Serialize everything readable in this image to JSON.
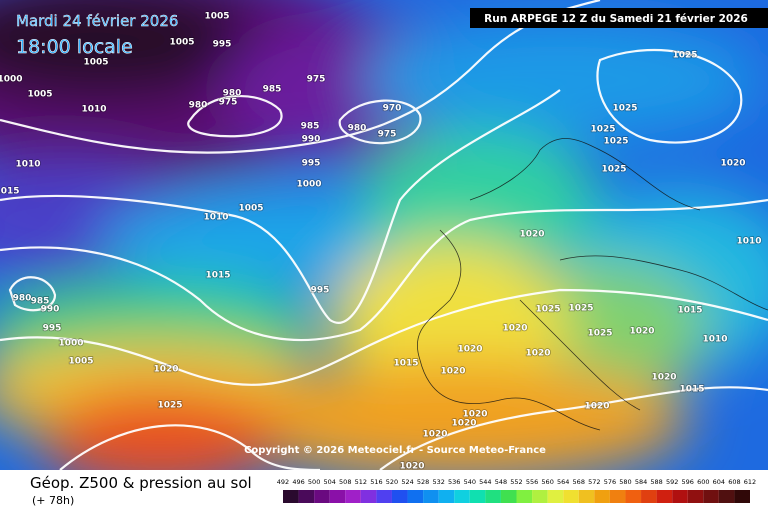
{
  "header": {
    "date": "Mardi 24 février 2026",
    "time": "18:00 locale",
    "run": "Run ARPEGE 12 Z du Samedi 21 février 2026"
  },
  "map": {
    "copyright": "Copyright © 2026 Meteociel.fr - Source Meteo-France",
    "isobar_labels": [
      "1005",
      "1005",
      "995",
      "1005",
      "1000",
      "1005",
      "1010",
      "975",
      "985",
      "980",
      "975",
      "980",
      "970",
      "975",
      "980",
      "985",
      "990",
      "995",
      "1000",
      "1010",
      "1015",
      "1005",
      "1010",
      "1015",
      "995",
      "980",
      "985",
      "990",
      "995",
      "1000",
      "1005",
      "1020",
      "1025",
      "1025",
      "1025",
      "1025",
      "1025",
      "1025",
      "1020",
      "1010",
      "1020",
      "1025",
      "1025",
      "1025",
      "1020",
      "1020",
      "1015",
      "1010",
      "1020",
      "1020",
      "1015",
      "1020",
      "1020",
      "1015",
      "1020",
      "1020",
      "1020",
      "1020",
      "1020"
    ]
  },
  "legend": {
    "title": "Géop. Z500 & pression au sol",
    "lead": "(+ 78h)",
    "scale": [
      "492",
      "496",
      "500",
      "504",
      "508",
      "512",
      "516",
      "520",
      "524",
      "528",
      "532",
      "536",
      "540",
      "544",
      "548",
      "552",
      "556",
      "560",
      "564",
      "568",
      "572",
      "576",
      "580",
      "584",
      "588",
      "592",
      "596",
      "600",
      "604",
      "608",
      "612"
    ]
  }
}
